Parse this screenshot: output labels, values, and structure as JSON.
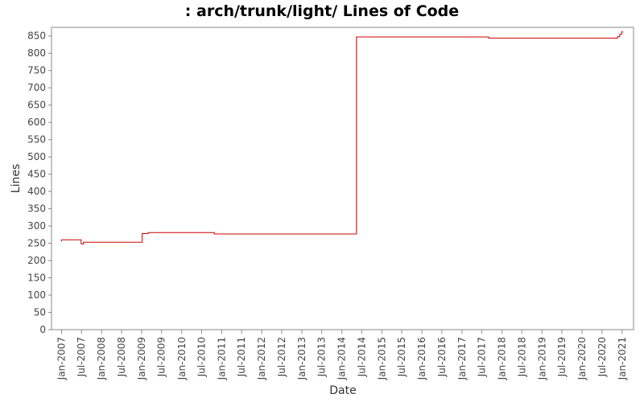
{
  "chart_data": {
    "type": "line",
    "title": ": arch/trunk/light/ Lines of Code",
    "xlabel": "Date",
    "ylabel": "Lines",
    "ylim": [
      0,
      875
    ],
    "xlim": [
      "2006-10-01",
      "2021-04-15"
    ],
    "yticks": [
      0,
      50,
      100,
      150,
      200,
      250,
      300,
      350,
      400,
      450,
      500,
      550,
      600,
      650,
      700,
      750,
      800,
      850
    ],
    "xticks": [
      {
        "date": "2007-01-01",
        "label": "Jan-2007"
      },
      {
        "date": "2007-07-01",
        "label": "Jul-2007"
      },
      {
        "date": "2008-01-01",
        "label": "Jan-2008"
      },
      {
        "date": "2008-07-01",
        "label": "Jul-2008"
      },
      {
        "date": "2009-01-01",
        "label": "Jan-2009"
      },
      {
        "date": "2009-07-01",
        "label": "Jul-2009"
      },
      {
        "date": "2010-01-01",
        "label": "Jan-2010"
      },
      {
        "date": "2010-07-01",
        "label": "Jul-2010"
      },
      {
        "date": "2011-01-01",
        "label": "Jan-2011"
      },
      {
        "date": "2011-07-01",
        "label": "Jul-2011"
      },
      {
        "date": "2012-01-01",
        "label": "Jan-2012"
      },
      {
        "date": "2012-07-01",
        "label": "Jul-2012"
      },
      {
        "date": "2013-01-01",
        "label": "Jan-2013"
      },
      {
        "date": "2013-07-01",
        "label": "Jul-2013"
      },
      {
        "date": "2014-01-01",
        "label": "Jan-2014"
      },
      {
        "date": "2014-07-01",
        "label": "Jul-2014"
      },
      {
        "date": "2015-01-01",
        "label": "Jan-2015"
      },
      {
        "date": "2015-07-01",
        "label": "Jul-2015"
      },
      {
        "date": "2016-01-01",
        "label": "Jan-2016"
      },
      {
        "date": "2016-07-01",
        "label": "Jul-2016"
      },
      {
        "date": "2017-01-01",
        "label": "Jan-2017"
      },
      {
        "date": "2017-07-01",
        "label": "Jul-2017"
      },
      {
        "date": "2018-01-01",
        "label": "Jan-2018"
      },
      {
        "date": "2018-07-01",
        "label": "Jul-2018"
      },
      {
        "date": "2019-01-01",
        "label": "Jan-2019"
      },
      {
        "date": "2019-07-01",
        "label": "Jul-2019"
      },
      {
        "date": "2020-01-01",
        "label": "Jan-2020"
      },
      {
        "date": "2020-07-01",
        "label": "Jul-2020"
      },
      {
        "date": "2021-01-01",
        "label": "Jan-2021"
      }
    ],
    "grid": false,
    "step": true,
    "series": [
      {
        "color": "#cc0000",
        "points": [
          {
            "x": "2006-12-28",
            "y": 256
          },
          {
            "x": "2006-12-30",
            "y": 260
          },
          {
            "x": "2007-06-20",
            "y": 260
          },
          {
            "x": "2007-06-28",
            "y": 248
          },
          {
            "x": "2007-07-20",
            "y": 253
          },
          {
            "x": "2008-12-25",
            "y": 253
          },
          {
            "x": "2009-01-05",
            "y": 278
          },
          {
            "x": "2009-03-01",
            "y": 281
          },
          {
            "x": "2010-10-15",
            "y": 281
          },
          {
            "x": "2010-10-25",
            "y": 277
          },
          {
            "x": "2014-05-10",
            "y": 277
          },
          {
            "x": "2014-05-14",
            "y": 847
          },
          {
            "x": "2017-08-20",
            "y": 847
          },
          {
            "x": "2017-09-01",
            "y": 844
          },
          {
            "x": "2020-11-10",
            "y": 844
          },
          {
            "x": "2020-11-20",
            "y": 848
          },
          {
            "x": "2020-12-10",
            "y": 855
          },
          {
            "x": "2020-12-28",
            "y": 862
          },
          {
            "x": "2021-01-10",
            "y": 862
          }
        ]
      }
    ]
  }
}
